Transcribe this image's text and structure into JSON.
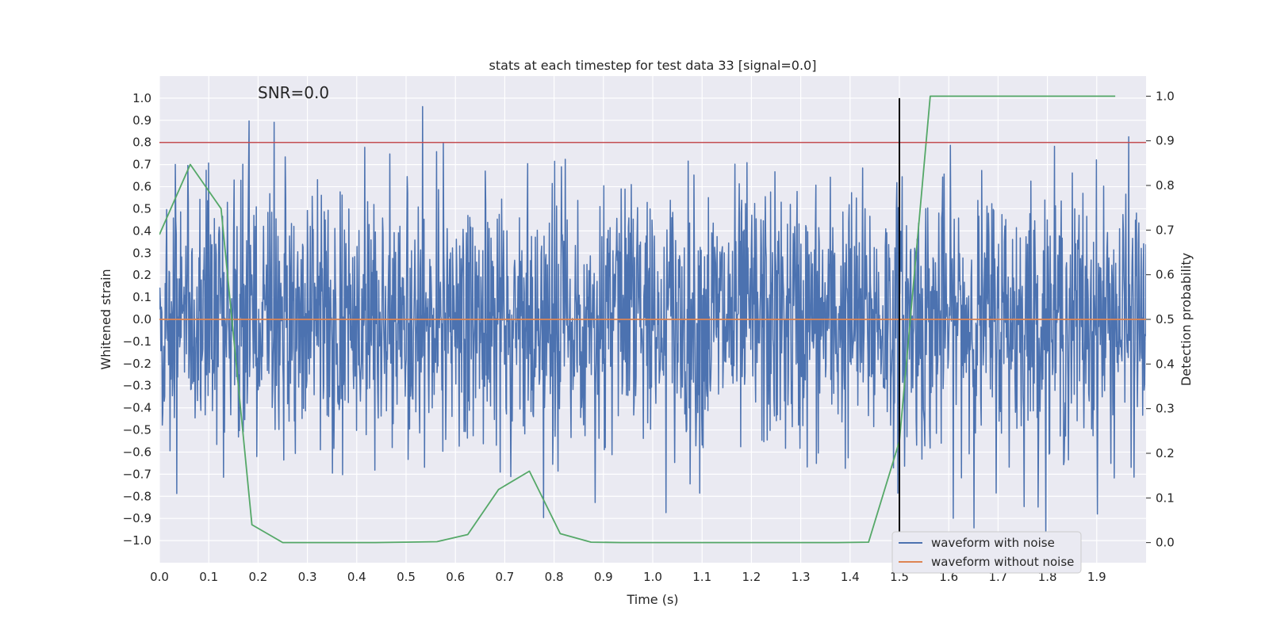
{
  "chart_data": {
    "type": "line",
    "title": "stats at each timestep for test data 33 [signal=0.0]",
    "xlabel": "Time (s)",
    "ylabel": "Whitened strain",
    "y2label": "Detection probability",
    "annotation": "SNR=0.0",
    "xlim": [
      0.0,
      2.0
    ],
    "ylim": [
      -1.1,
      1.1
    ],
    "y2lim": [
      -0.045,
      1.045
    ],
    "x_ticks": [
      0.0,
      0.1,
      0.2,
      0.3,
      0.4,
      0.5,
      0.6,
      0.7,
      0.8,
      0.9,
      1.0,
      1.1,
      1.2,
      1.3,
      1.4,
      1.5,
      1.6,
      1.7,
      1.8,
      1.9
    ],
    "x_tick_labels": [
      "0.0",
      "0.1",
      "0.2",
      "0.3",
      "0.4",
      "0.5",
      "0.6",
      "0.7",
      "0.8",
      "0.9",
      "1.0",
      "1.1",
      "1.2",
      "1.3",
      "1.4",
      "1.5",
      "1.6",
      "1.7",
      "1.8",
      "1.9"
    ],
    "y_ticks": [
      1.0,
      0.9,
      0.8,
      0.7,
      0.6,
      0.5,
      0.4,
      0.3,
      0.2,
      0.1,
      0.0,
      -0.1,
      -0.2,
      -0.3,
      -0.4,
      -0.5,
      -0.6,
      -0.7,
      -0.8,
      -0.9,
      -1.0
    ],
    "y_tick_labels": [
      "1.0",
      "0.9",
      "0.8",
      "0.7",
      "0.6",
      "0.5",
      "0.4",
      "0.3",
      "0.2",
      "0.1",
      "0.0",
      "−0.1",
      "−0.2",
      "−0.3",
      "−0.4",
      "−0.5",
      "−0.6",
      "−0.7",
      "−0.8",
      "−0.9",
      "−1.0"
    ],
    "y2_ticks": [
      1.0,
      0.9,
      0.8,
      0.7,
      0.6,
      0.5,
      0.4,
      0.3,
      0.2,
      0.1,
      0.0
    ],
    "y2_tick_labels": [
      "1.0",
      "0.9",
      "0.8",
      "0.7",
      "0.6",
      "0.5",
      "0.4",
      "0.3",
      "0.2",
      "0.1",
      "0.0"
    ],
    "grid": true,
    "legend_position": "bottom-right",
    "series": [
      {
        "name": "waveform with noise",
        "axis": "left",
        "color": "#4c72b0",
        "kind": "noise",
        "x_start": 0.0,
        "x_end": 2.0,
        "num_samples": 2048,
        "amplitude_range": [
          -1.0,
          1.0
        ],
        "approx_std": 0.3
      },
      {
        "name": "waveform without noise",
        "axis": "left",
        "color": "#dd8452",
        "x": [
          0.0,
          2.0
        ],
        "y": [
          0.0,
          0.0
        ]
      },
      {
        "name": "Detection probability",
        "axis": "right",
        "color": "#55a868",
        "show_in_legend": false,
        "x": [
          0.0,
          0.0625,
          0.125,
          0.1875,
          0.25,
          0.3125,
          0.375,
          0.4375,
          0.5,
          0.5625,
          0.625,
          0.6875,
          0.75,
          0.8125,
          0.875,
          0.9375,
          1.0,
          1.0625,
          1.125,
          1.1875,
          1.25,
          1.3125,
          1.375,
          1.4375,
          1.5,
          1.5625,
          1.625,
          1.6875,
          1.75,
          1.8125,
          1.875,
          1.9375
        ],
        "y": [
          0.69,
          0.847,
          0.748,
          0.04,
          0.0,
          0.0,
          0.0,
          0.0,
          0.001,
          0.002,
          0.018,
          0.119,
          0.16,
          0.02,
          0.001,
          0.0,
          0.0,
          0.0,
          0.0,
          0.0,
          0.0,
          0.0,
          0.0,
          0.001,
          0.227,
          1.0,
          1.0,
          1.0,
          1.0,
          1.0,
          1.0,
          1.0
        ]
      }
    ],
    "reference_lines": [
      {
        "name": "threshold",
        "orientation": "horizontal",
        "value": 0.8,
        "axis": "left",
        "color": "#c44e52"
      },
      {
        "name": "event-time",
        "orientation": "vertical",
        "value": 1.5,
        "from": -1.0,
        "to": 1.0,
        "axis": "left",
        "color": "#000000"
      }
    ],
    "colors": {
      "plot_background": "#eaeaf2",
      "grid": "#ffffff",
      "text": "#262626",
      "legend_background": "#eaeaf2",
      "legend_border": "#cccccc"
    }
  }
}
